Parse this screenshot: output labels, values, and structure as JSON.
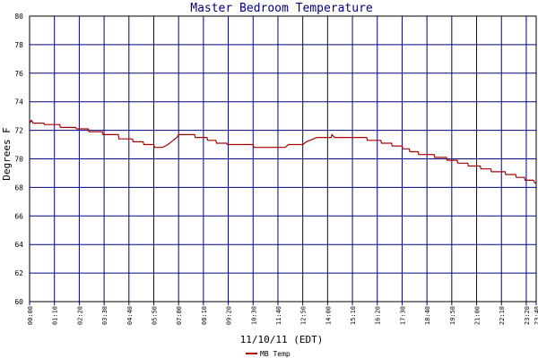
{
  "chart_data": {
    "type": "line",
    "title": "Master Bedroom Temperature",
    "xlabel": "11/10/11 (EDT)",
    "ylabel": "Degrees F",
    "ylim": [
      60,
      80
    ],
    "xlim": [
      "00:00",
      "23:48"
    ],
    "yticks": [
      "60",
      "62",
      "64",
      "66",
      "68",
      "70",
      "72",
      "74",
      "76",
      "78",
      "80"
    ],
    "xticks": [
      "00:00",
      "01:10",
      "02:20",
      "03:30",
      "04:40",
      "05:50",
      "07:00",
      "08:10",
      "09:20",
      "10:30",
      "11:40",
      "12:50",
      "14:00",
      "15:10",
      "16:20",
      "17:30",
      "18:40",
      "19:50",
      "21:00",
      "22:10",
      "23:20",
      "23:48"
    ],
    "grid": true,
    "legend_position": "bottom-left",
    "series": [
      {
        "name": "MB Temp",
        "color": "#aa0000",
        "points": [
          [
            "00:00",
            72.5
          ],
          [
            "00:05",
            72.7
          ],
          [
            "00:10",
            72.5
          ],
          [
            "00:40",
            72.5
          ],
          [
            "00:42",
            72.4
          ],
          [
            "01:25",
            72.4
          ],
          [
            "01:27",
            72.2
          ],
          [
            "02:10",
            72.2
          ],
          [
            "02:12",
            72.1
          ],
          [
            "02:45",
            72.1
          ],
          [
            "02:47",
            71.9
          ],
          [
            "03:25",
            71.9
          ],
          [
            "03:27",
            71.7
          ],
          [
            "04:10",
            71.7
          ],
          [
            "04:12",
            71.4
          ],
          [
            "04:50",
            71.4
          ],
          [
            "04:52",
            71.2
          ],
          [
            "05:20",
            71.2
          ],
          [
            "05:22",
            71.0
          ],
          [
            "05:50",
            71.0
          ],
          [
            "05:52",
            70.8
          ],
          [
            "06:15",
            70.8
          ],
          [
            "06:30",
            71.0
          ],
          [
            "06:45",
            71.3
          ],
          [
            "06:55",
            71.5
          ],
          [
            "07:00",
            71.7
          ],
          [
            "07:45",
            71.7
          ],
          [
            "07:47",
            71.5
          ],
          [
            "08:20",
            71.5
          ],
          [
            "08:22",
            71.3
          ],
          [
            "08:45",
            71.3
          ],
          [
            "08:47",
            71.1
          ],
          [
            "09:15",
            71.1
          ],
          [
            "09:17",
            71.0
          ],
          [
            "10:30",
            71.0
          ],
          [
            "10:32",
            70.8
          ],
          [
            "12:00",
            70.8
          ],
          [
            "12:10",
            71.0
          ],
          [
            "12:50",
            71.0
          ],
          [
            "13:00",
            71.2
          ],
          [
            "13:20",
            71.4
          ],
          [
            "13:30",
            71.5
          ],
          [
            "14:10",
            71.5
          ],
          [
            "14:12",
            71.7
          ],
          [
            "14:20",
            71.5
          ],
          [
            "15:50",
            71.5
          ],
          [
            "15:52",
            71.3
          ],
          [
            "16:30",
            71.3
          ],
          [
            "16:32",
            71.1
          ],
          [
            "17:00",
            71.1
          ],
          [
            "17:02",
            70.9
          ],
          [
            "17:30",
            70.9
          ],
          [
            "17:32",
            70.7
          ],
          [
            "17:50",
            70.7
          ],
          [
            "17:52",
            70.5
          ],
          [
            "18:15",
            70.5
          ],
          [
            "18:17",
            70.3
          ],
          [
            "19:00",
            70.3
          ],
          [
            "19:02",
            70.1
          ],
          [
            "19:35",
            70.1
          ],
          [
            "19:37",
            69.9
          ],
          [
            "20:05",
            69.9
          ],
          [
            "20:07",
            69.7
          ],
          [
            "20:35",
            69.7
          ],
          [
            "20:37",
            69.5
          ],
          [
            "21:10",
            69.5
          ],
          [
            "21:12",
            69.3
          ],
          [
            "21:40",
            69.3
          ],
          [
            "21:42",
            69.1
          ],
          [
            "22:20",
            69.1
          ],
          [
            "22:22",
            68.9
          ],
          [
            "22:50",
            68.9
          ],
          [
            "22:52",
            68.7
          ],
          [
            "23:15",
            68.7
          ],
          [
            "23:17",
            68.5
          ],
          [
            "23:40",
            68.5
          ],
          [
            "23:45",
            68.3
          ],
          [
            "23:48",
            68.3
          ]
        ]
      }
    ]
  }
}
